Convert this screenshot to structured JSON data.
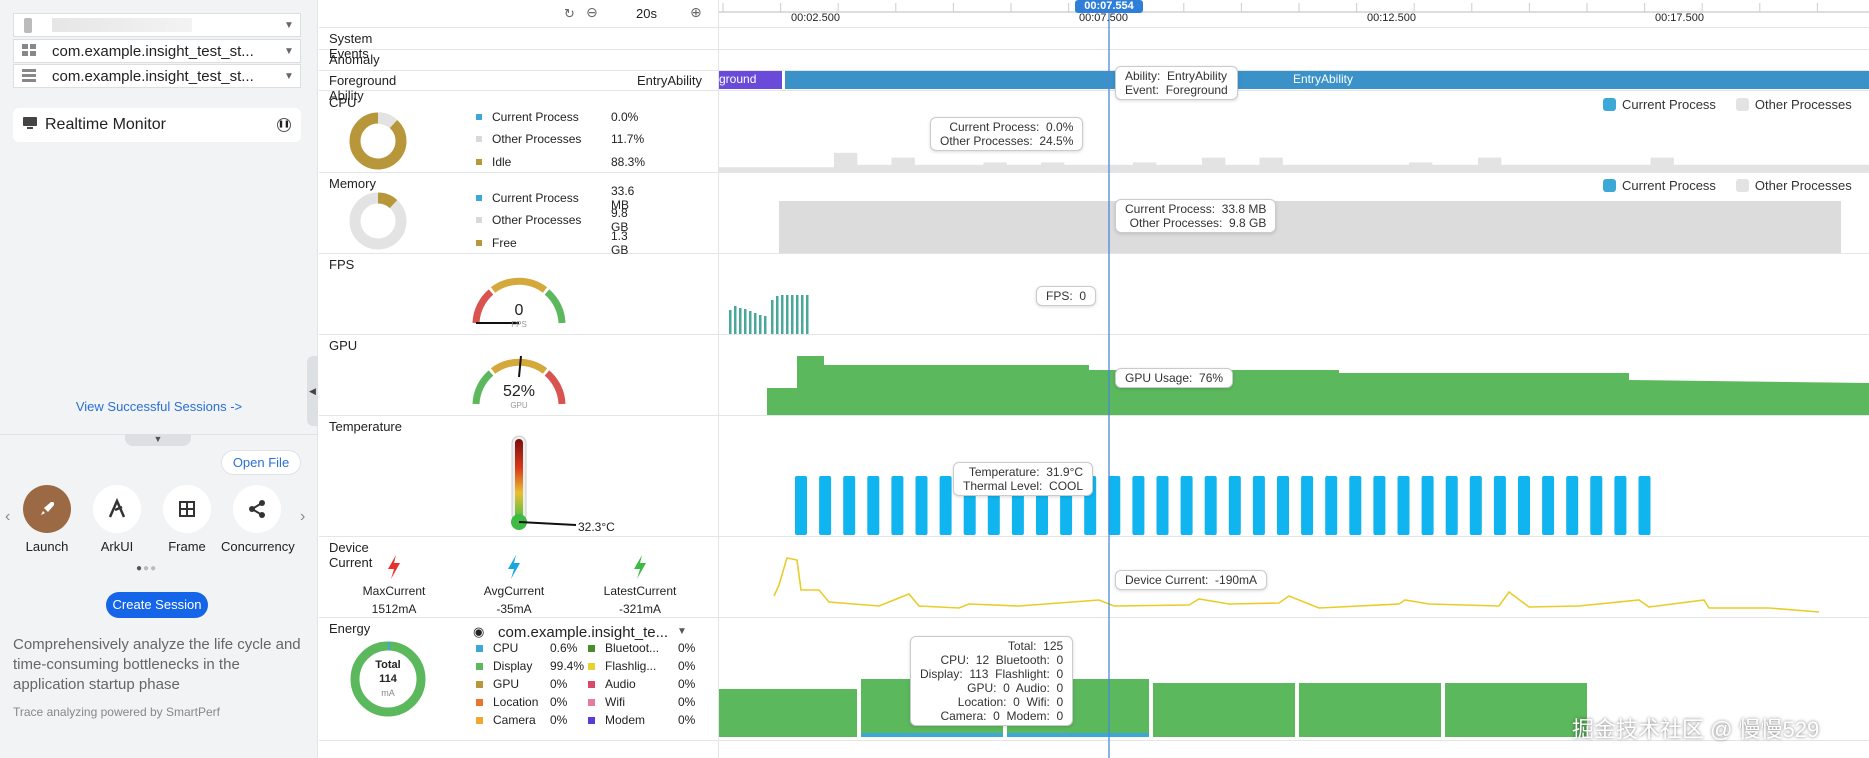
{
  "sidebar": {
    "device_select": {
      "value": ""
    },
    "process_select_1": {
      "value": "com.example.insight_test_st..."
    },
    "process_select_2": {
      "value": "com.example.insight_test_st..."
    },
    "monitor_label": "Realtime Monitor",
    "view_sessions": "View Successful Sessions ->",
    "open_file": "Open File",
    "tools": [
      {
        "label": "Launch",
        "icon": "rocket-icon"
      },
      {
        "label": "ArkUI",
        "icon": "arkui-icon"
      },
      {
        "label": "Frame",
        "icon": "frame-icon"
      },
      {
        "label": "Concurrency",
        "icon": "share-nodes-icon"
      }
    ],
    "create_session": "Create Session",
    "description": "Comprehensively analyze the life cycle and time-consuming bottlenecks in the application startup phase",
    "powered_by": "Trace analyzing powered by SmartPerf"
  },
  "toolbar": {
    "range": "20s",
    "ticks": [
      "00:02.500",
      "00:07.500",
      "00:12.500",
      "00:17.500"
    ],
    "cursor_time": "00:07.554"
  },
  "rows": {
    "system_events": "System Events",
    "anomaly": "Anomaly",
    "foreground_ability": {
      "label": "Foreground Ability",
      "value": "EntryAbility",
      "seg1": "ground",
      "seg2": "EntryAbility",
      "tooltip": "Ability:  EntryAbility\nEvent:  Foreground"
    },
    "cpu": {
      "label": "CPU",
      "legend": [
        {
          "name": "Current Process",
          "value": "0.0%",
          "color": "#3da8d8"
        },
        {
          "name": "Other Processes",
          "value": "11.7%",
          "color": "#d9d9d9"
        },
        {
          "name": "Idle",
          "value": "88.3%",
          "color": "#b8963a"
        }
      ],
      "tooltip": "Current Process:  0.0%\nOther Processes:  24.5%",
      "bars": [
        2,
        2,
        2,
        2,
        2,
        2,
        2,
        2,
        2,
        2,
        8,
        8,
        3,
        3,
        3,
        6,
        6,
        3,
        3,
        3,
        3,
        3,
        3,
        4,
        4,
        3,
        3,
        3,
        4,
        4,
        3,
        3,
        3,
        3,
        3,
        3,
        4,
        4,
        3,
        3,
        3,
        3,
        6,
        6,
        3,
        3,
        3,
        6,
        6,
        3,
        3,
        3,
        3,
        3,
        3,
        3,
        3,
        3,
        3,
        3,
        4,
        4,
        3,
        3,
        3,
        3,
        6,
        6,
        3,
        3,
        3,
        3,
        3,
        3,
        3,
        3,
        3,
        3,
        3,
        3,
        3,
        6,
        6,
        3,
        3,
        3,
        3,
        3,
        3,
        3,
        3,
        3,
        3,
        3,
        3,
        3,
        3,
        3,
        3,
        3
      ]
    },
    "memory": {
      "label": "Memory",
      "legend": [
        {
          "name": "Current Process",
          "value": "33.6 MB",
          "color": "#3da8d8"
        },
        {
          "name": "Other Processes",
          "value": "9.8 GB",
          "color": "#d9d9d9"
        },
        {
          "name": "Free",
          "value": "1.3 GB",
          "color": "#b8963a"
        }
      ],
      "tooltip": "Current Process:  33.8 MB\nOther Processes:  9.8 GB"
    },
    "fps": {
      "label": "FPS",
      "gauge_value": "0",
      "gauge_unit": "FPS",
      "tooltip": "FPS:  0"
    },
    "gpu": {
      "label": "GPU",
      "gauge_value": "52%",
      "gauge_unit": "GPU",
      "tooltip": "GPU Usage:  76%"
    },
    "temperature": {
      "label": "Temperature",
      "value": "32.3°C",
      "tooltip": "Temperature:  31.9°C\nThermal Level:  COOL"
    },
    "device_current": {
      "label": "Device Current",
      "items": [
        {
          "name": "MaxCurrent",
          "value": "1512mA",
          "color": "#e8322e"
        },
        {
          "name": "AvgCurrent",
          "value": "-35mA",
          "color": "#1aa7e0"
        },
        {
          "name": "LatestCurrent",
          "value": "-321mA",
          "color": "#3dbb44"
        }
      ],
      "tooltip": "Device Current:  -190mA"
    },
    "energy": {
      "label": "Energy",
      "total_label": "Total",
      "total_value": "114",
      "total_unit": "mA",
      "process": "com.example.insight_te...",
      "legend": [
        {
          "name": "CPU",
          "value": "0.6%",
          "color": "#3da8d8"
        },
        {
          "name": "Display",
          "value": "99.4%",
          "color": "#5cb85c"
        },
        {
          "name": "GPU",
          "value": "0%",
          "color": "#b8963a"
        },
        {
          "name": "Location",
          "value": "0%",
          "color": "#e8762e"
        },
        {
          "name": "Camera",
          "value": "0%",
          "color": "#f0a830"
        },
        {
          "name": "Bluetoot...",
          "value": "0%",
          "color": "#4a8c2a"
        },
        {
          "name": "Flashlig...",
          "value": "0%",
          "color": "#e8d32e"
        },
        {
          "name": "Audio",
          "value": "0%",
          "color": "#d94a6a"
        },
        {
          "name": "Wifi",
          "value": "0%",
          "color": "#e87aa0"
        },
        {
          "name": "Modem",
          "value": "0%",
          "color": "#5a3ad8"
        }
      ],
      "tooltip": "Total:  125\nCPU:  12  Bluetooth:  0\nDisplay:  113  Flashlight:  0\nGPU:  0  Audio:  0\nLocation:  0  Wifi:  0\nCamera:  0  Modem:  0"
    }
  },
  "legend_right": {
    "current": "Current Process",
    "other": "Other Processes",
    "current_color": "#3da8d8",
    "other_color": "#e3e3e3"
  },
  "watermark": "掘金技术社区 @ 慢慢529"
}
